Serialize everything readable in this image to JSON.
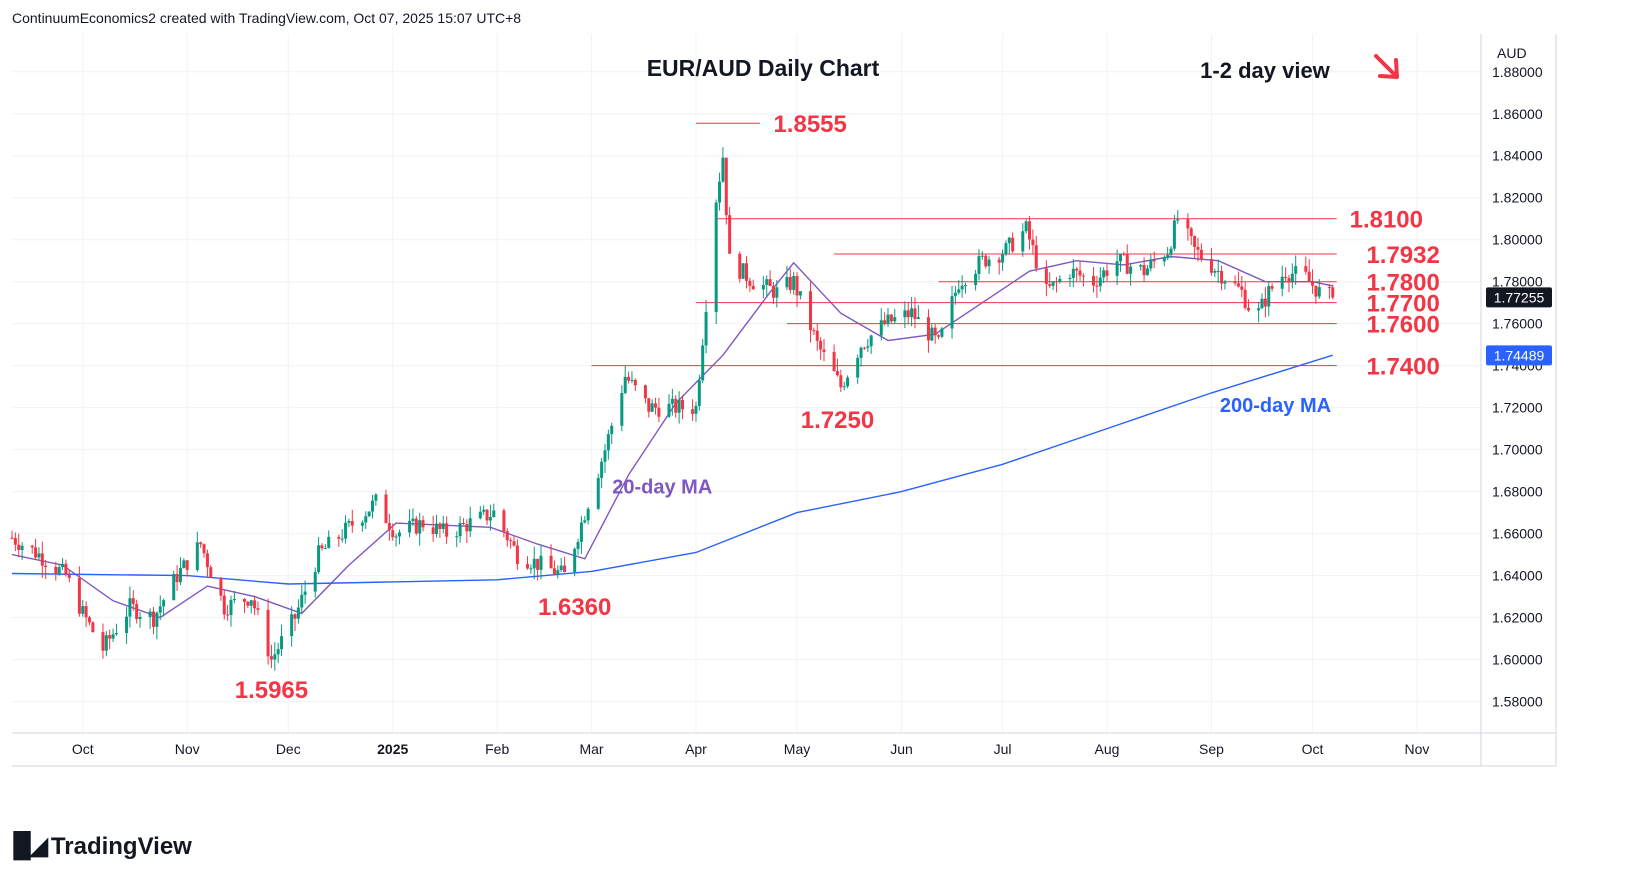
{
  "header": {
    "attribution": "ContinuumEconomics2 created with TradingView.com, Oct 07, 2025 15:07 UTC+8"
  },
  "branding": {
    "logo_text": "TradingView",
    "logo_icon": "tradingview-logo-icon"
  },
  "chart_data": {
    "type": "candlestick",
    "title": "EUR/AUD Daily Chart",
    "view_label": "1-2 day view",
    "view_arrow": {
      "icon": "arrow-down-right-icon",
      "color": "#f23645"
    },
    "currency_label": "AUD",
    "y_axis": {
      "range": [
        1.565,
        1.898
      ],
      "ticks": [
        "1.88000",
        "1.86000",
        "1.84000",
        "1.82000",
        "1.80000",
        "1.78000",
        "1.76000",
        "1.74000",
        "1.72000",
        "1.70000",
        "1.68000",
        "1.66000",
        "1.64000",
        "1.62000",
        "1.60000",
        "1.58000"
      ],
      "tick_values": [
        1.88,
        1.86,
        1.84,
        1.82,
        1.8,
        1.78,
        1.76,
        1.74,
        1.72,
        1.7,
        1.68,
        1.66,
        1.64,
        1.62,
        1.6,
        1.58
      ]
    },
    "x_axis": {
      "range": [
        "2024-09-10",
        "2025-11-20"
      ],
      "ticks": [
        {
          "label": "Oct",
          "date": "2024-10-01",
          "bold": false
        },
        {
          "label": "Nov",
          "date": "2024-11-01",
          "bold": false
        },
        {
          "label": "Dec",
          "date": "2024-12-01",
          "bold": false
        },
        {
          "label": "2025",
          "date": "2025-01-01",
          "bold": true
        },
        {
          "label": "Feb",
          "date": "2025-02-01",
          "bold": false
        },
        {
          "label": "Mar",
          "date": "2025-03-01",
          "bold": false
        },
        {
          "label": "Apr",
          "date": "2025-04-01",
          "bold": false
        },
        {
          "label": "May",
          "date": "2025-05-01",
          "bold": false
        },
        {
          "label": "Jun",
          "date": "2025-06-01",
          "bold": false
        },
        {
          "label": "Jul",
          "date": "2025-07-01",
          "bold": false
        },
        {
          "label": "Aug",
          "date": "2025-08-01",
          "bold": false
        },
        {
          "label": "Sep",
          "date": "2025-09-01",
          "bold": false
        },
        {
          "label": "Oct",
          "date": "2025-10-01",
          "bold": false
        },
        {
          "label": "Nov",
          "date": "2025-11-01",
          "bold": false
        }
      ]
    },
    "colors": {
      "up": "#089981",
      "down": "#f23645",
      "level": "#f23645",
      "ma20": "#7e57c2",
      "ma200": "#2962ff",
      "grid": "#f0f3fa",
      "axis_text": "#131722"
    },
    "grid": true,
    "price_path": [
      [
        "2024-09-10",
        1.658
      ],
      [
        "2024-09-18",
        1.65
      ],
      [
        "2024-09-26",
        1.64
      ],
      [
        "2024-10-01",
        1.622
      ],
      [
        "2024-10-07",
        1.605
      ],
      [
        "2024-10-15",
        1.625
      ],
      [
        "2024-10-22",
        1.62
      ],
      [
        "2024-10-29",
        1.64
      ],
      [
        "2024-11-05",
        1.655
      ],
      [
        "2024-11-12",
        1.625
      ],
      [
        "2024-11-20",
        1.63
      ],
      [
        "2024-11-26",
        1.6
      ],
      [
        "2024-12-03",
        1.62
      ],
      [
        "2024-12-10",
        1.65
      ],
      [
        "2024-12-17",
        1.66
      ],
      [
        "2024-12-27",
        1.675
      ],
      [
        "2025-01-02",
        1.66
      ],
      [
        "2025-01-10",
        1.665
      ],
      [
        "2025-01-17",
        1.66
      ],
      [
        "2025-01-24",
        1.665
      ],
      [
        "2025-01-31",
        1.67
      ],
      [
        "2025-02-07",
        1.65
      ],
      [
        "2025-02-14",
        1.645
      ],
      [
        "2025-02-21",
        1.64
      ],
      [
        "2025-03-01",
        1.68
      ],
      [
        "2025-03-05",
        1.7
      ],
      [
        "2025-03-11",
        1.735
      ],
      [
        "2025-03-18",
        1.72
      ],
      [
        "2025-03-25",
        1.72
      ],
      [
        "2025-04-01",
        1.72
      ],
      [
        "2025-04-04",
        1.77
      ],
      [
        "2025-04-07",
        1.82
      ],
      [
        "2025-04-09",
        1.84
      ],
      [
        "2025-04-11",
        1.79
      ],
      [
        "2025-04-18",
        1.78
      ],
      [
        "2025-04-25",
        1.775
      ],
      [
        "2025-04-30",
        1.78
      ],
      [
        "2025-05-07",
        1.75
      ],
      [
        "2025-05-14",
        1.73
      ],
      [
        "2025-05-20",
        1.75
      ],
      [
        "2025-05-27",
        1.76
      ],
      [
        "2025-06-04",
        1.765
      ],
      [
        "2025-06-12",
        1.75
      ],
      [
        "2025-06-18",
        1.78
      ],
      [
        "2025-06-25",
        1.79
      ],
      [
        "2025-07-02",
        1.795
      ],
      [
        "2025-07-08",
        1.805
      ],
      [
        "2025-07-14",
        1.775
      ],
      [
        "2025-07-21",
        1.785
      ],
      [
        "2025-07-28",
        1.78
      ],
      [
        "2025-08-04",
        1.79
      ],
      [
        "2025-08-12",
        1.785
      ],
      [
        "2025-08-19",
        1.795
      ],
      [
        "2025-08-22",
        1.81
      ],
      [
        "2025-08-27",
        1.795
      ],
      [
        "2025-09-03",
        1.785
      ],
      [
        "2025-09-10",
        1.775
      ],
      [
        "2025-09-14",
        1.762
      ],
      [
        "2025-09-18",
        1.775
      ],
      [
        "2025-09-23",
        1.785
      ],
      [
        "2025-09-29",
        1.782
      ],
      [
        "2025-10-03",
        1.775
      ],
      [
        "2025-10-07",
        1.7725
      ]
    ],
    "ma20_path": [
      [
        "2024-09-10",
        1.65
      ],
      [
        "2024-09-25",
        1.645
      ],
      [
        "2024-10-10",
        1.628
      ],
      [
        "2024-10-24",
        1.62
      ],
      [
        "2024-11-07",
        1.635
      ],
      [
        "2024-11-21",
        1.63
      ],
      [
        "2024-12-05",
        1.622
      ],
      [
        "2024-12-19",
        1.645
      ],
      [
        "2025-01-02",
        1.665
      ],
      [
        "2025-01-16",
        1.664
      ],
      [
        "2025-01-30",
        1.663
      ],
      [
        "2025-02-13",
        1.655
      ],
      [
        "2025-02-27",
        1.648
      ],
      [
        "2025-03-12",
        1.688
      ],
      [
        "2025-03-26",
        1.722
      ],
      [
        "2025-04-09",
        1.745
      ],
      [
        "2025-04-23",
        1.775
      ],
      [
        "2025-04-30",
        1.789
      ],
      [
        "2025-05-14",
        1.765
      ],
      [
        "2025-05-28",
        1.752
      ],
      [
        "2025-06-11",
        1.755
      ],
      [
        "2025-06-25",
        1.77
      ],
      [
        "2025-07-09",
        1.785
      ],
      [
        "2025-07-23",
        1.79
      ],
      [
        "2025-08-06",
        1.788
      ],
      [
        "2025-08-20",
        1.792
      ],
      [
        "2025-09-03",
        1.79
      ],
      [
        "2025-09-17",
        1.78
      ],
      [
        "2025-10-01",
        1.78
      ],
      [
        "2025-10-07",
        1.778
      ]
    ],
    "ma200_path": [
      [
        "2024-09-10",
        1.641
      ],
      [
        "2024-11-01",
        1.64
      ],
      [
        "2024-12-01",
        1.636
      ],
      [
        "2025-01-01",
        1.637
      ],
      [
        "2025-02-01",
        1.638
      ],
      [
        "2025-03-01",
        1.642
      ],
      [
        "2025-04-01",
        1.651
      ],
      [
        "2025-05-01",
        1.67
      ],
      [
        "2025-06-01",
        1.68
      ],
      [
        "2025-07-01",
        1.693
      ],
      [
        "2025-08-01",
        1.71
      ],
      [
        "2025-09-01",
        1.727
      ],
      [
        "2025-10-07",
        1.745
      ]
    ],
    "levels": [
      {
        "label": "1.8555",
        "value": 1.8555,
        "start": "2025-04-01"
      },
      {
        "label": "1.8100",
        "value": 1.81,
        "start": "2025-04-07"
      },
      {
        "label": "1.7932",
        "value": 1.7932,
        "start": "2025-05-12"
      },
      {
        "label": "1.7800",
        "value": 1.78,
        "start": "2025-06-12"
      },
      {
        "label": "1.7700",
        "value": 1.77,
        "start": "2025-04-01"
      },
      {
        "label": "1.7600",
        "value": 1.76,
        "start": "2025-04-28"
      },
      {
        "label": "1.7400",
        "value": 1.74,
        "start": "2025-03-01"
      }
    ],
    "annotations": [
      {
        "label": "1.7250",
        "value": 1.725,
        "date": "2025-05-13"
      },
      {
        "label": "1.6360",
        "value": 1.636,
        "date": "2025-02-24"
      },
      {
        "label": "1.5965",
        "value": 1.5965,
        "date": "2024-11-26"
      }
    ],
    "ma_labels": [
      {
        "label": "20-day MA",
        "value": 1.679,
        "date": "2025-03-22"
      },
      {
        "label": "200-day MA",
        "value": 1.718,
        "date": "2025-09-20"
      }
    ],
    "price_badges": [
      {
        "label": "1.77255",
        "value": 1.77255,
        "color": "#131722"
      },
      {
        "label": "1.74489",
        "value": 1.74489,
        "color": "#2962ff"
      }
    ]
  }
}
